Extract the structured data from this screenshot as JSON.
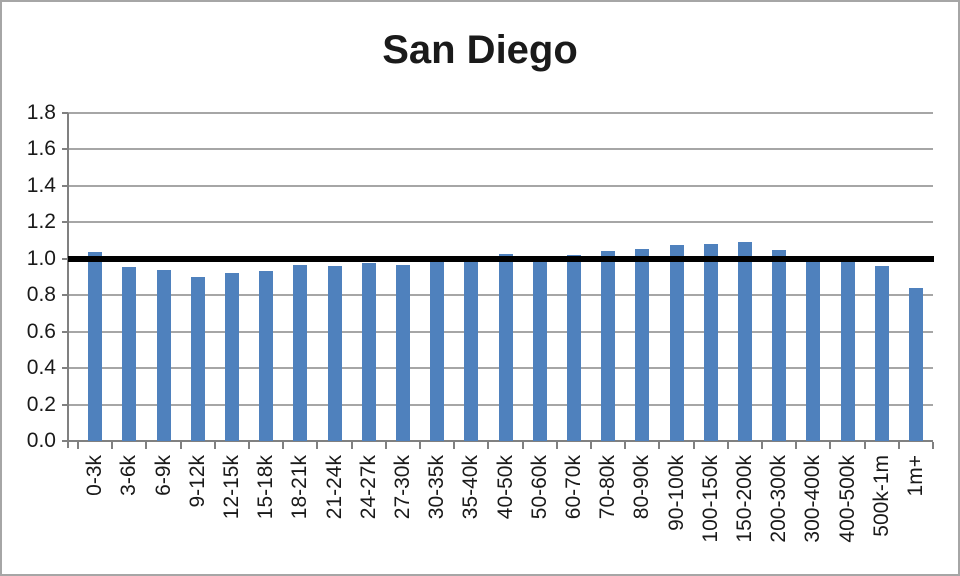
{
  "window": {
    "background": "#ffffff",
    "frame_border_color": "#a6a6a6"
  },
  "chart_data": {
    "type": "bar",
    "title": "San Diego",
    "categories": [
      "0-3k",
      "3-6k",
      "6-9k",
      "9-12k",
      "12-15k",
      "15-18k",
      "18-21k",
      "21-24k",
      "24-27k",
      "27-30k",
      "30-35k",
      "35-40k",
      "40-50k",
      "50-60k",
      "60-70k",
      "70-80k",
      "80-90k",
      "90-100k",
      "100-150k",
      "150-200k",
      "200-300k",
      "300-400k",
      "400-500k",
      "500k-1m",
      "1m+"
    ],
    "values": [
      1.035,
      0.955,
      0.94,
      0.9,
      0.92,
      0.935,
      0.965,
      0.96,
      0.975,
      0.965,
      0.985,
      0.985,
      1.025,
      0.99,
      1.02,
      1.045,
      1.055,
      1.075,
      1.08,
      1.09,
      1.05,
      0.99,
      0.99,
      0.96,
      0.84
    ],
    "xlabel": "",
    "ylabel": "",
    "ylim": [
      0,
      1.8
    ],
    "ytick_step": 0.2,
    "ytick_labels": [
      "0.0",
      "0.2",
      "0.4",
      "0.6",
      "0.8",
      "1.0",
      "1.2",
      "1.4",
      "1.6",
      "1.8"
    ],
    "grid": true,
    "legend_position": "none",
    "reference_line": {
      "value": 1.0,
      "color": "#000000"
    },
    "bar_color": "#4f81bd",
    "gridline_color": "#a6a6a6",
    "axis_color": "#808080",
    "text_color": "#1a1a1a"
  }
}
